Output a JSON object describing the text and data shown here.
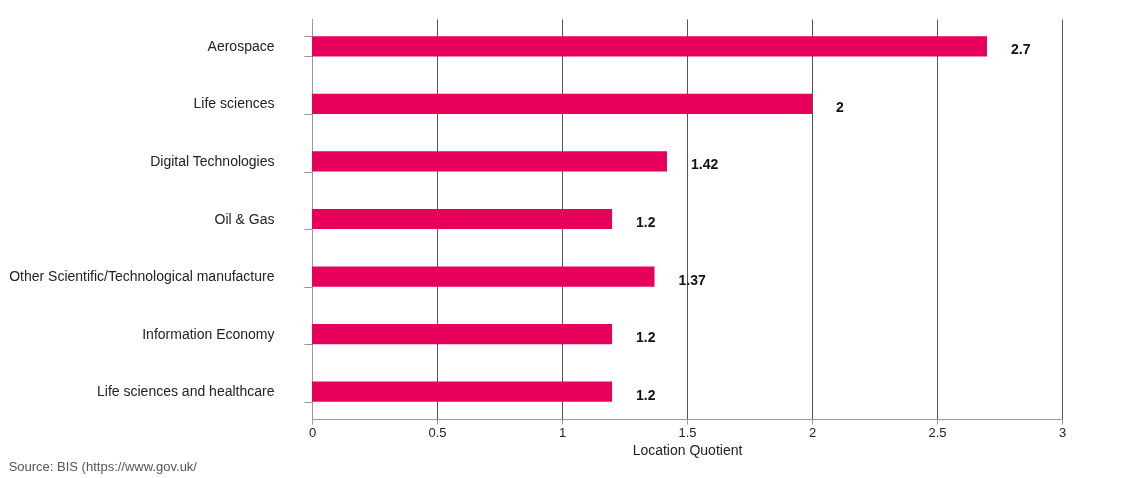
{
  "chart_data": {
    "type": "bar",
    "orientation": "horizontal",
    "xlabel": "Location Quotient",
    "categories": [
      "Aerospace",
      "Life sciences",
      "Digital Technologies",
      "Oil & Gas",
      "Other Scientific/Technological manufacture",
      "Information Economy",
      "Life sciences and healthcare"
    ],
    "values": [
      2.7,
      2,
      1.42,
      1.2,
      1.37,
      1.2,
      1.2
    ],
    "data_labels": true,
    "color": "#e6005c",
    "xlim": [
      0,
      3
    ],
    "xticks": [
      0,
      0.5,
      1,
      1.5,
      2,
      2.5,
      3
    ],
    "grid": "x",
    "annotations": [
      "Source: BIS (https://www.gov.uk/"
    ]
  }
}
